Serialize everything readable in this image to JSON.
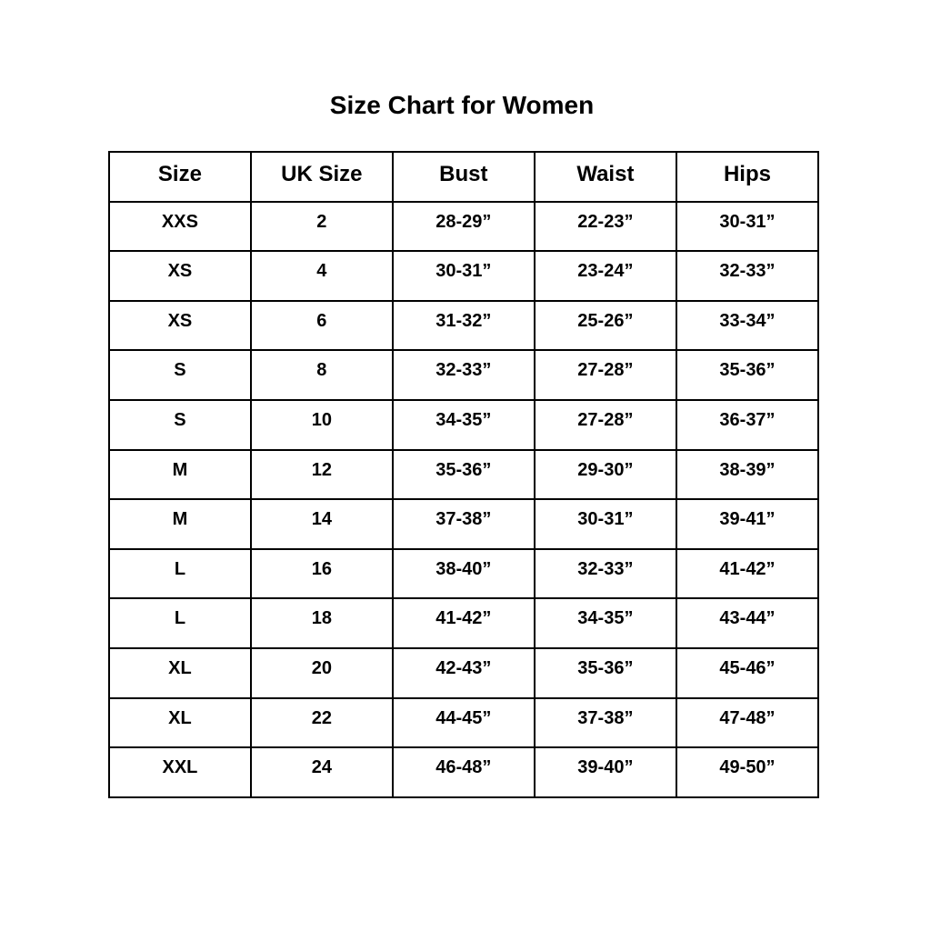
{
  "title": "Size Chart for Women",
  "headers": [
    "Size",
    "UK Size",
    "Bust",
    "Waist",
    "Hips"
  ],
  "rows": [
    [
      "XXS",
      "2",
      "28-29”",
      "22-23”",
      "30-31”"
    ],
    [
      "XS",
      "4",
      "30-31”",
      "23-24”",
      "32-33”"
    ],
    [
      "XS",
      "6",
      "31-32”",
      "25-26”",
      "33-34”"
    ],
    [
      "S",
      "8",
      "32-33”",
      "27-28”",
      "35-36”"
    ],
    [
      "S",
      "10",
      "34-35”",
      "27-28”",
      "36-37”"
    ],
    [
      "M",
      "12",
      "35-36”",
      "29-30”",
      "38-39”"
    ],
    [
      "M",
      "14",
      "37-38”",
      "30-31”",
      "39-41”"
    ],
    [
      "L",
      "16",
      "38-40”",
      "32-33”",
      "41-42”"
    ],
    [
      "L",
      "18",
      "41-42”",
      "34-35”",
      "43-44”"
    ],
    [
      "XL",
      "20",
      "42-43”",
      "35-36”",
      "45-46”"
    ],
    [
      "XL",
      "22",
      "44-45”",
      "37-38”",
      "47-48”"
    ],
    [
      "XXL",
      "24",
      "46-48”",
      "39-40”",
      "49-50”"
    ]
  ]
}
